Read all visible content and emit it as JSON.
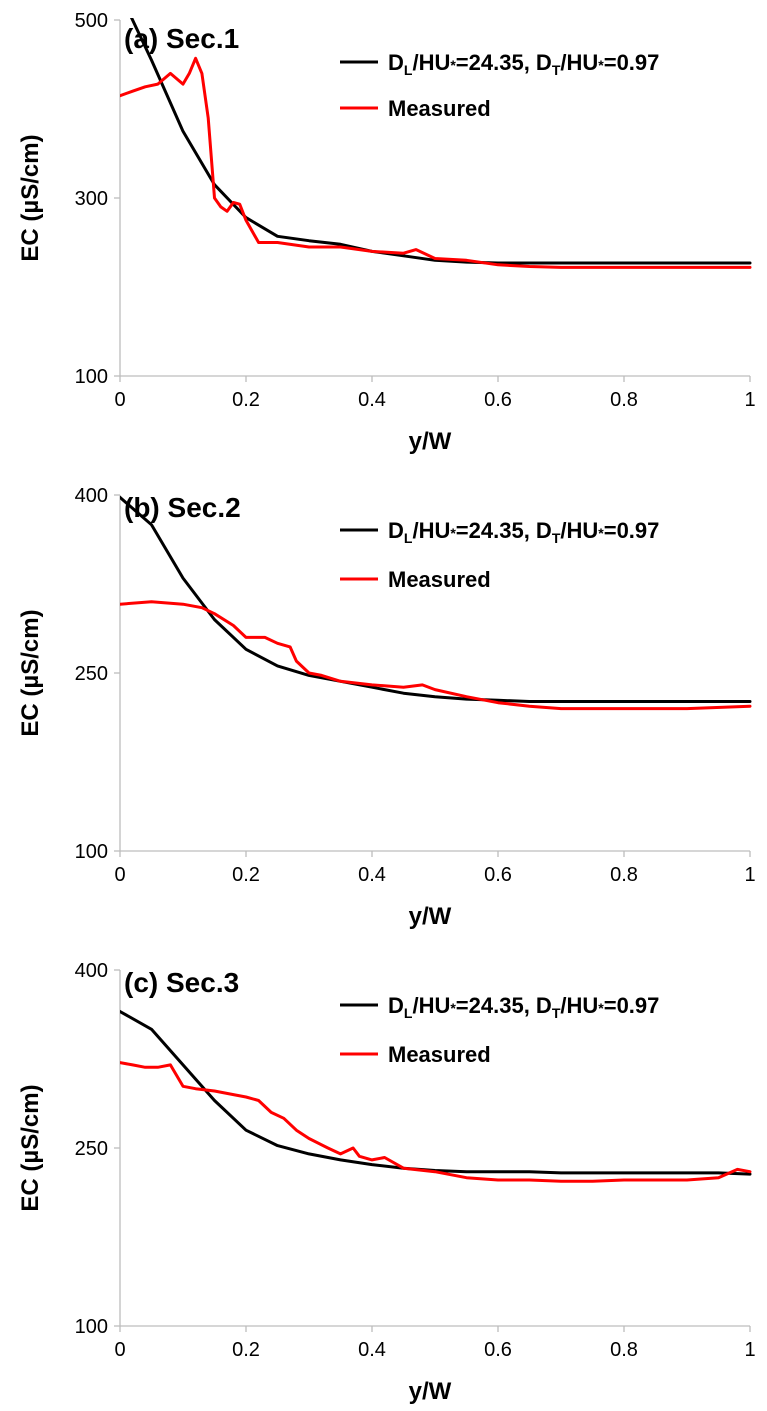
{
  "chart_data": [
    {
      "type": "line",
      "title": "(a) Sec.1",
      "xlabel": "y/W",
      "ylabel": "EC (µS/cm)",
      "xlim": [
        0,
        1
      ],
      "ylim": [
        100,
        500
      ],
      "xticks": [
        "0",
        "0.2",
        "0.4",
        "0.6",
        "0.8",
        "1"
      ],
      "yticks": [
        "100",
        "300",
        "500"
      ],
      "grid": false,
      "legend": "top-right",
      "series": [
        {
          "name_parts": [
            "D",
            "L",
            "/HU",
            "*",
            "=24.35, D",
            "T",
            "/HU",
            "*",
            "=0.97"
          ],
          "color": "#000000",
          "x": [
            0,
            0.05,
            0.1,
            0.15,
            0.2,
            0.25,
            0.3,
            0.35,
            0.4,
            0.45,
            0.5,
            0.55,
            0.6,
            0.65,
            0.7,
            0.75,
            0.8,
            0.85,
            0.9,
            0.95,
            1.0
          ],
          "y": [
            530,
            455,
            375,
            315,
            278,
            257,
            252,
            248,
            240,
            235,
            230,
            228,
            227,
            227,
            227,
            227,
            227,
            227,
            227,
            227,
            227
          ]
        },
        {
          "name": "Measured",
          "color": "#ff0000",
          "x": [
            0,
            0.02,
            0.04,
            0.06,
            0.08,
            0.1,
            0.11,
            0.12,
            0.13,
            0.14,
            0.15,
            0.16,
            0.17,
            0.18,
            0.19,
            0.2,
            0.22,
            0.25,
            0.3,
            0.35,
            0.4,
            0.45,
            0.47,
            0.5,
            0.55,
            0.6,
            0.65,
            0.7,
            0.8,
            0.9,
            1.0
          ],
          "y": [
            415,
            420,
            425,
            428,
            440,
            428,
            440,
            457,
            440,
            390,
            300,
            290,
            285,
            295,
            293,
            275,
            250,
            250,
            245,
            245,
            240,
            238,
            242,
            232,
            230,
            225,
            223,
            222,
            222,
            222,
            222
          ]
        }
      ]
    },
    {
      "type": "line",
      "title": "(b) Sec.2",
      "xlabel": "y/W",
      "ylabel": "EC (µS/cm)",
      "xlim": [
        0,
        1
      ],
      "ylim": [
        100,
        400
      ],
      "xticks": [
        "0",
        "0.2",
        "0.4",
        "0.6",
        "0.8",
        "1"
      ],
      "yticks": [
        "100",
        "250",
        "400"
      ],
      "grid": false,
      "legend": "top-right",
      "series": [
        {
          "name_parts": [
            "D",
            "L",
            "/HU",
            "*",
            "=24.35, D",
            "T",
            "/HU",
            "*",
            "=0.97"
          ],
          "color": "#000000",
          "x": [
            0,
            0.05,
            0.1,
            0.15,
            0.2,
            0.25,
            0.3,
            0.35,
            0.4,
            0.45,
            0.5,
            0.55,
            0.6,
            0.65,
            0.7,
            0.75,
            0.8,
            0.85,
            0.9,
            0.95,
            1.0
          ],
          "y": [
            398,
            375,
            330,
            295,
            270,
            256,
            248,
            243,
            238,
            233,
            230,
            228,
            227,
            226,
            226,
            226,
            226,
            226,
            226,
            226,
            226
          ]
        },
        {
          "name": "Measured",
          "color": "#ff0000",
          "x": [
            0,
            0.05,
            0.1,
            0.13,
            0.15,
            0.18,
            0.2,
            0.23,
            0.25,
            0.27,
            0.28,
            0.3,
            0.32,
            0.35,
            0.4,
            0.45,
            0.48,
            0.5,
            0.55,
            0.6,
            0.65,
            0.7,
            0.8,
            0.9,
            1.0
          ],
          "y": [
            308,
            310,
            308,
            305,
            300,
            290,
            280,
            280,
            275,
            272,
            260,
            250,
            248,
            243,
            240,
            238,
            240,
            236,
            230,
            225,
            222,
            220,
            220,
            220,
            222
          ]
        }
      ]
    },
    {
      "type": "line",
      "title": "(c) Sec.3",
      "xlabel": "y/W",
      "ylabel": "EC (µS/cm)",
      "xlim": [
        0,
        1
      ],
      "ylim": [
        100,
        400
      ],
      "xticks": [
        "0",
        "0.2",
        "0.4",
        "0.6",
        "0.8",
        "1"
      ],
      "yticks": [
        "100",
        "250",
        "400"
      ],
      "grid": false,
      "legend": "top-right",
      "series": [
        {
          "name_parts": [
            "D",
            "L",
            "/HU",
            "*",
            "=24.35, D",
            "T",
            "/HU",
            "*",
            "=0.97"
          ],
          "color": "#000000",
          "x": [
            0,
            0.05,
            0.1,
            0.15,
            0.2,
            0.25,
            0.3,
            0.35,
            0.4,
            0.45,
            0.5,
            0.55,
            0.6,
            0.65,
            0.7,
            0.75,
            0.8,
            0.85,
            0.9,
            0.95,
            1.0
          ],
          "y": [
            365,
            350,
            320,
            290,
            265,
            252,
            245,
            240,
            236,
            233,
            231,
            230,
            230,
            230,
            229,
            229,
            229,
            229,
            229,
            229,
            228
          ]
        },
        {
          "name": "Measured",
          "color": "#ff0000",
          "x": [
            0,
            0.02,
            0.04,
            0.06,
            0.08,
            0.1,
            0.12,
            0.15,
            0.18,
            0.2,
            0.22,
            0.24,
            0.26,
            0.28,
            0.3,
            0.33,
            0.35,
            0.37,
            0.38,
            0.4,
            0.42,
            0.45,
            0.5,
            0.55,
            0.6,
            0.65,
            0.7,
            0.75,
            0.8,
            0.85,
            0.9,
            0.95,
            0.98,
            1.0
          ],
          "y": [
            322,
            320,
            318,
            318,
            320,
            302,
            300,
            298,
            295,
            293,
            290,
            280,
            275,
            265,
            258,
            250,
            245,
            250,
            243,
            240,
            242,
            233,
            230,
            225,
            223,
            223,
            222,
            222,
            223,
            223,
            223,
            225,
            232,
            230
          ]
        }
      ]
    }
  ]
}
